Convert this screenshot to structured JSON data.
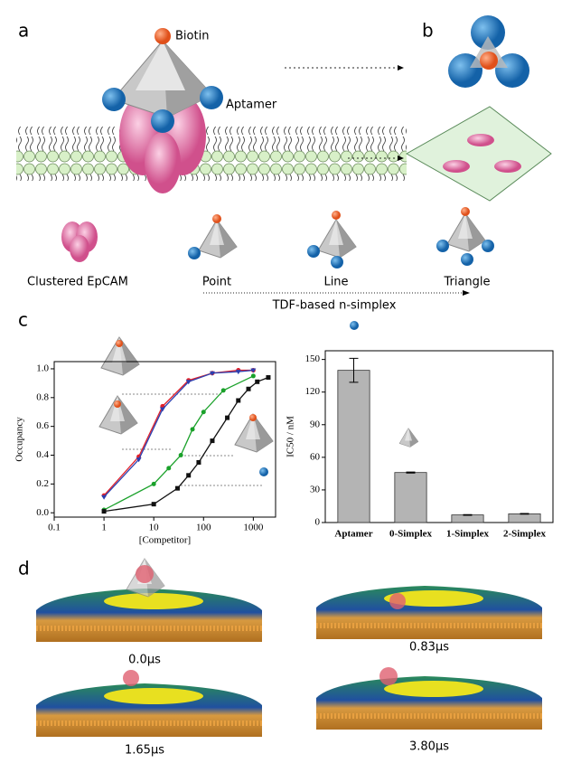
{
  "panels": {
    "a": "a",
    "b": "b",
    "c": "c",
    "d": "d"
  },
  "schematic": {
    "biotin": "Biotin",
    "aptamer": "Aptamer",
    "clustered": "Clustered  EpCAM",
    "point": "Point",
    "line": "Line",
    "triangle": "Triangle",
    "axis": "TDF-based n-simplex"
  },
  "chart_data": [
    {
      "type": "line",
      "y_label": "Occupancy",
      "x_label": "[Competitor]",
      "log_x": true,
      "xlim": [
        0.1,
        2800
      ],
      "xticks": [
        0.1,
        1,
        10,
        100,
        1000
      ],
      "ylim": [
        -0.03,
        1.05
      ],
      "yticks": [
        {
          "value": 0,
          "label": "0.0"
        },
        0.2,
        0.4,
        0.6,
        0.8,
        {
          "value": 1,
          "label": "1.0"
        }
      ],
      "series": [
        {
          "color": "#e0202a",
          "marker": "circle",
          "x": [
            1,
            5,
            15,
            50,
            150,
            500,
            1000
          ],
          "values": [
            0.12,
            0.39,
            0.74,
            0.92,
            0.97,
            0.99,
            0.99
          ]
        },
        {
          "color": "#2b3fb0",
          "marker": "triangle",
          "x": [
            1,
            5,
            15,
            50,
            150,
            500,
            1000
          ],
          "values": [
            0.11,
            0.37,
            0.72,
            0.91,
            0.97,
            0.98,
            0.99
          ]
        },
        {
          "color": "#1aa12a",
          "marker": "circle",
          "x": [
            1,
            10,
            20,
            35,
            60,
            100,
            250,
            1000
          ],
          "values": [
            0.02,
            0.2,
            0.31,
            0.4,
            0.58,
            0.7,
            0.85,
            0.95
          ]
        },
        {
          "color": "#111111",
          "marker": "square",
          "x": [
            1,
            10,
            30,
            50,
            80,
            150,
            300,
            500,
            800,
            1200,
            2000
          ],
          "values": [
            0.01,
            0.06,
            0.17,
            0.26,
            0.35,
            0.5,
            0.66,
            0.78,
            0.86,
            0.91,
            0.94
          ]
        }
      ]
    },
    {
      "type": "bar",
      "y_label": "IC50 / nM",
      "categories": [
        "Aptamer",
        "0-Simplex",
        "1-Simplex",
        "2-Simplex"
      ],
      "values": [
        140,
        46,
        7,
        8
      ],
      "errors": [
        11,
        0.5,
        0.3,
        0.3
      ],
      "color": "#b4b4b4",
      "ylim": [
        0,
        158
      ],
      "yticks": [
        0,
        30,
        60,
        90,
        120,
        150
      ]
    }
  ],
  "snapshots": [
    "0.0μs",
    "0.83μs",
    "1.65μs",
    "3.80μs"
  ]
}
